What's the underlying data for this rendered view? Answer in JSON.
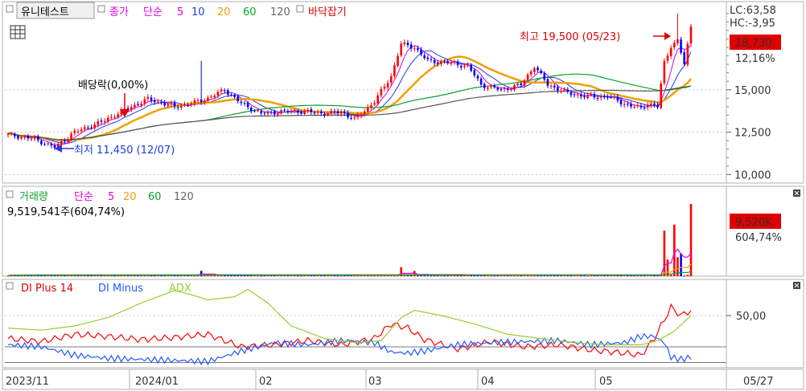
{
  "colors": {
    "up": "#ff0000",
    "down": "#0000ff",
    "ma5": "#e000e0",
    "ma10": "#1e3cdc",
    "ma20": "#f0a000",
    "ma60": "#0aa02a",
    "ma120": "#555555",
    "vol_ma5": "#e000e0",
    "vol_ma20": "#f0a000",
    "vol_ma60": "#0aa02a",
    "vol_ma120": "#555555",
    "di_plus": "#ff0000",
    "di_minus": "#1e5aff",
    "adx": "#9acd32",
    "grid": "#c8c8c8",
    "frame": "#b0b0b0"
  },
  "header": {
    "stock_name": "유니테스트",
    "price_legend": [
      "종가",
      "단순",
      "5",
      "10",
      "20",
      "60",
      "120"
    ],
    "extra": "바닥잡기"
  },
  "price_axis": {
    "lc": "LC:63,58",
    "hc": "HC:-3,95",
    "current_price": "18,730",
    "current_change": "12,16%",
    "ticks": [
      "15,000",
      "12,500",
      "10,000"
    ]
  },
  "annotations": {
    "high": "최고 19,500 (05/23)",
    "low": "최저 11,450 (12/07)",
    "dividend": "배당락(0,00%)"
  },
  "volume_header": {
    "title": "거래량",
    "ma_legend": [
      "단순",
      "5",
      "20",
      "60",
      "120"
    ],
    "value": "9,519,541주(604,74%)",
    "axis_value": "9,520K",
    "axis_pct": "604,74%"
  },
  "dmi_header": {
    "di_plus": "DI Plus 14",
    "di_minus": "DI Minus",
    "adx": "ADX",
    "axis_tick": "50,00"
  },
  "date_axis": {
    "labels": [
      "2023/11",
      "2024/01",
      "02",
      "03",
      "04",
      "05"
    ],
    "right": "05/27"
  },
  "chart_data": [
    {
      "type": "candlestick",
      "title": "유니테스트",
      "x_range": [
        "2023/11",
        "2024/05/27"
      ],
      "ylim": [
        9500,
        20200
      ],
      "yticks": [
        15000,
        12500,
        10000
      ],
      "keypoints": [
        {
          "i": 0,
          "c": 12350
        },
        {
          "i": 8,
          "c": 12100
        },
        {
          "i": 14,
          "c": 11600
        },
        {
          "i": 20,
          "c": 12500
        },
        {
          "i": 28,
          "c": 13100
        },
        {
          "i": 36,
          "c": 13900
        },
        {
          "i": 42,
          "c": 14450
        },
        {
          "i": 50,
          "c": 14000
        },
        {
          "i": 56,
          "c": 14250
        },
        {
          "i": 60,
          "c": 14500
        },
        {
          "i": 65,
          "c": 15000
        },
        {
          "i": 70,
          "c": 14200
        },
        {
          "i": 76,
          "c": 13600
        },
        {
          "i": 84,
          "c": 13750
        },
        {
          "i": 90,
          "c": 13700
        },
        {
          "i": 96,
          "c": 13600
        },
        {
          "i": 100,
          "c": 13700
        },
        {
          "i": 104,
          "c": 13250
        },
        {
          "i": 110,
          "c": 14300
        },
        {
          "i": 115,
          "c": 15800
        },
        {
          "i": 118,
          "c": 17700
        },
        {
          "i": 122,
          "c": 17500
        },
        {
          "i": 126,
          "c": 16700
        },
        {
          "i": 132,
          "c": 16600
        },
        {
          "i": 138,
          "c": 16400
        },
        {
          "i": 142,
          "c": 15300
        },
        {
          "i": 148,
          "c": 15000
        },
        {
          "i": 154,
          "c": 15300
        },
        {
          "i": 158,
          "c": 16400
        },
        {
          "i": 162,
          "c": 15300
        },
        {
          "i": 168,
          "c": 14800
        },
        {
          "i": 174,
          "c": 14600
        },
        {
          "i": 180,
          "c": 14600
        },
        {
          "i": 186,
          "c": 14100
        },
        {
          "i": 190,
          "c": 13900
        },
        {
          "i": 192,
          "c": 14200
        },
        {
          "i": 195,
          "c": 14000
        },
        {
          "i": 197,
          "c": 16600
        },
        {
          "i": 199,
          "c": 17600
        },
        {
          "i": 201,
          "c": 17900
        },
        {
          "i": 203,
          "c": 16500
        },
        {
          "i": 205,
          "c": 18730
        }
      ],
      "high_marker": {
        "value": 19500,
        "date": "05/23"
      },
      "low_marker": {
        "value": 11450,
        "date": "12/07"
      }
    },
    {
      "type": "bar",
      "title": "거래량",
      "last_value": 9519541,
      "spikes": [
        {
          "i": 58,
          "v": 700000
        },
        {
          "i": 118,
          "v": 1200000
        },
        {
          "i": 122,
          "v": 700000
        },
        {
          "i": 197,
          "v": 6000000
        },
        {
          "i": 198,
          "v": 2200000
        },
        {
          "i": 200,
          "v": 6800000
        },
        {
          "i": 201,
          "v": 2500000
        },
        {
          "i": 202,
          "v": 3000000
        },
        {
          "i": 205,
          "v": 9519541
        }
      ],
      "ylim": [
        0,
        11000000
      ]
    },
    {
      "type": "line",
      "title": "DMI",
      "ylim": [
        0,
        80
      ],
      "yticks": [
        50
      ],
      "series": [
        {
          "name": "DI Plus 14",
          "points": [
            [
              0,
              28
            ],
            [
              10,
              25
            ],
            [
              20,
              32
            ],
            [
              30,
              30
            ],
            [
              40,
              27
            ],
            [
              50,
              29
            ],
            [
              60,
              32
            ],
            [
              70,
              20
            ],
            [
              80,
              22
            ],
            [
              90,
              26
            ],
            [
              100,
              22
            ],
            [
              110,
              28
            ],
            [
              115,
              42
            ],
            [
              120,
              38
            ],
            [
              125,
              27
            ],
            [
              135,
              18
            ],
            [
              145,
              25
            ],
            [
              155,
              20
            ],
            [
              165,
              22
            ],
            [
              175,
              17
            ],
            [
              185,
              14
            ],
            [
              190,
              12
            ],
            [
              194,
              28
            ],
            [
              197,
              46
            ],
            [
              199,
              58
            ],
            [
              202,
              50
            ],
            [
              205,
              55
            ]
          ]
        },
        {
          "name": "DI Minus",
          "points": [
            [
              0,
              22
            ],
            [
              10,
              20
            ],
            [
              20,
              12
            ],
            [
              30,
              9
            ],
            [
              40,
              8
            ],
            [
              50,
              7
            ],
            [
              60,
              6
            ],
            [
              70,
              16
            ],
            [
              80,
              24
            ],
            [
              90,
              22
            ],
            [
              100,
              26
            ],
            [
              110,
              24
            ],
            [
              115,
              15
            ],
            [
              120,
              14
            ],
            [
              125,
              16
            ],
            [
              135,
              22
            ],
            [
              145,
              24
            ],
            [
              155,
              25
            ],
            [
              165,
              26
            ],
            [
              175,
              22
            ],
            [
              185,
              24
            ],
            [
              190,
              30
            ],
            [
              194,
              30
            ],
            [
              197,
              24
            ],
            [
              199,
              10
            ],
            [
              202,
              8
            ],
            [
              205,
              10
            ]
          ]
        },
        {
          "name": "ADX",
          "points": [
            [
              0,
              38
            ],
            [
              10,
              36
            ],
            [
              20,
              40
            ],
            [
              30,
              48
            ],
            [
              40,
              62
            ],
            [
              50,
              74
            ],
            [
              55,
              70
            ],
            [
              60,
              65
            ],
            [
              68,
              68
            ],
            [
              72,
              75
            ],
            [
              78,
              62
            ],
            [
              85,
              40
            ],
            [
              95,
              28
            ],
            [
              105,
              24
            ],
            [
              112,
              26
            ],
            [
              118,
              48
            ],
            [
              122,
              55
            ],
            [
              130,
              50
            ],
            [
              140,
              42
            ],
            [
              150,
              32
            ],
            [
              160,
              28
            ],
            [
              170,
              24
            ],
            [
              180,
              22
            ],
            [
              190,
              22
            ],
            [
              195,
              26
            ],
            [
              200,
              35
            ],
            [
              205,
              50
            ]
          ]
        }
      ]
    }
  ]
}
